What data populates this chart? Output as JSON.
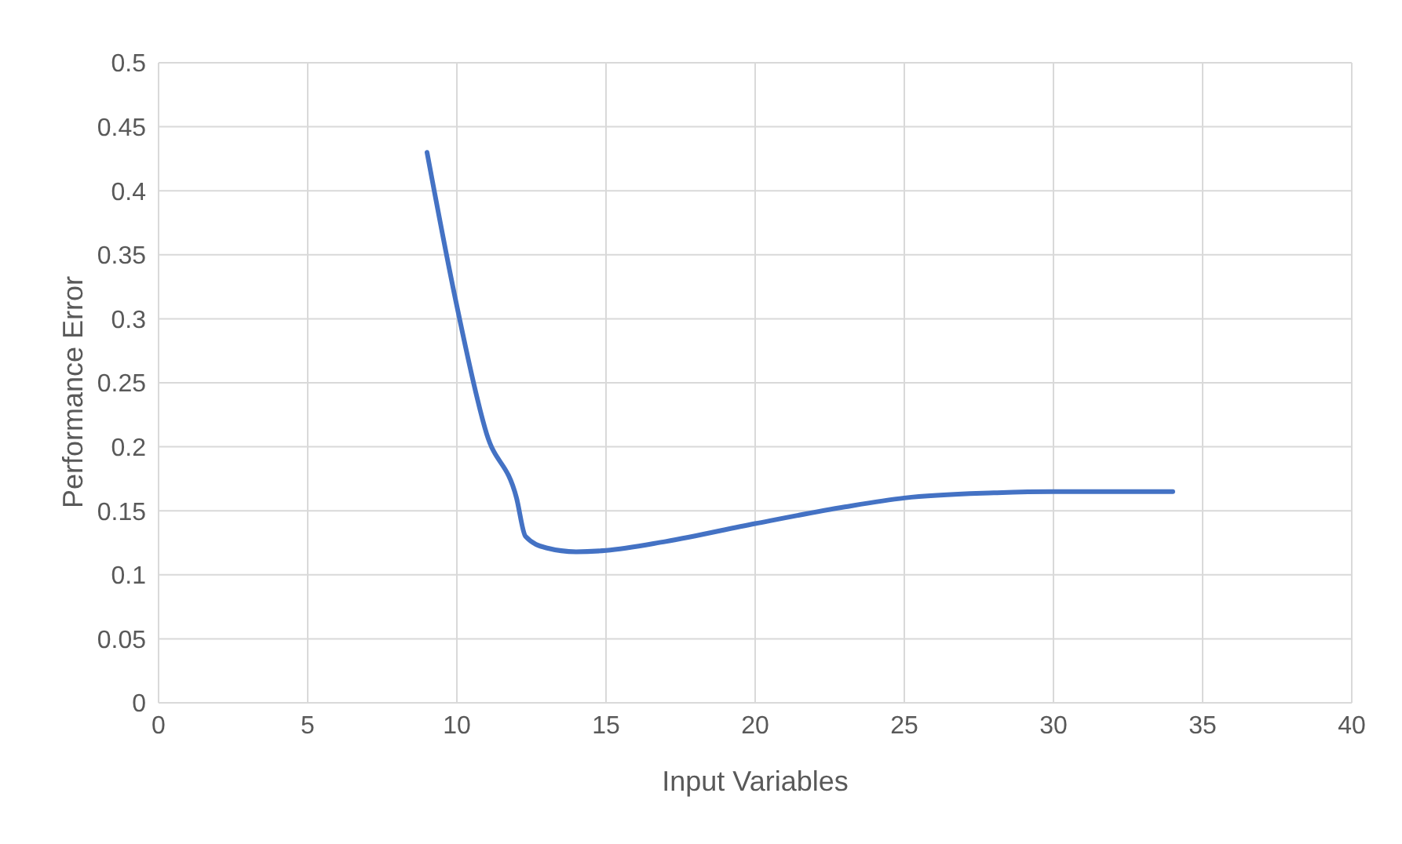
{
  "chart_data": {
    "type": "line",
    "xlabel": "Input Variables",
    "ylabel": "Performance Error",
    "x": [
      9,
      10,
      11,
      12,
      12.3,
      13,
      14,
      15,
      17,
      20,
      23,
      25,
      28,
      30,
      34
    ],
    "series": [
      {
        "color": "#4472c4",
        "values": [
          0.43,
          0.31,
          0.21,
          0.16,
          0.13,
          0.121,
          0.118,
          0.119,
          0.126,
          0.14,
          0.153,
          0.16,
          0.164,
          0.165,
          0.165
        ]
      }
    ],
    "xlim": [
      0,
      40
    ],
    "xticks": [
      0,
      5,
      10,
      15,
      20,
      25,
      30,
      35,
      40
    ],
    "ylim": [
      0,
      0.5
    ],
    "yticks": [
      0,
      0.05,
      0.1,
      0.15,
      0.2,
      0.25,
      0.3,
      0.35,
      0.4,
      0.45,
      0.5
    ],
    "grid": true,
    "legend": false,
    "marker": "none",
    "line_style": "solid"
  }
}
